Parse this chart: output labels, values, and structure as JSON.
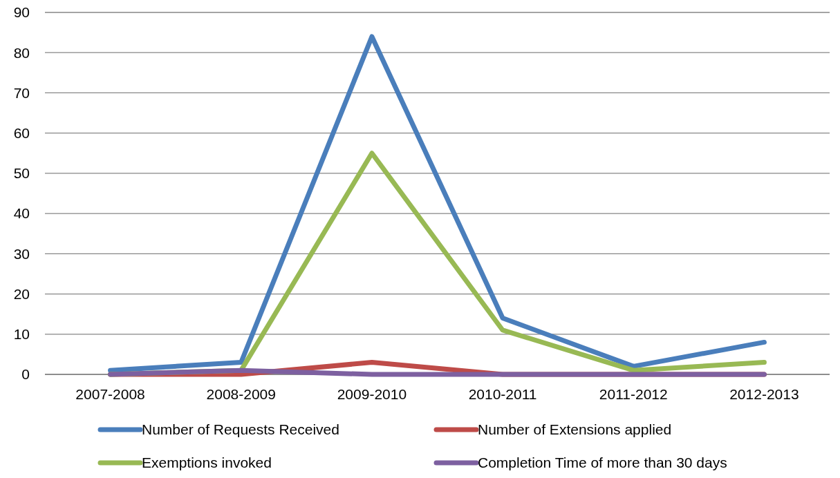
{
  "chart_data": {
    "type": "line",
    "categories": [
      "2007-2008",
      "2008-2009",
      "2009-2010",
      "2010-2011",
      "2011-2012",
      "2012-2013"
    ],
    "series": [
      {
        "name": "Number of Requests Received",
        "color": "#4a7ebb",
        "values": [
          1,
          3,
          84,
          14,
          2,
          8
        ]
      },
      {
        "name": "Number of Extensions applied",
        "color": "#be4b48",
        "values": [
          0,
          0,
          3,
          0,
          0,
          0
        ]
      },
      {
        "name": "Exemptions invoked",
        "color": "#98b954",
        "values": [
          0,
          1,
          55,
          11,
          1,
          3
        ]
      },
      {
        "name": "Completion Time of more than 30 days",
        "color": "#7d60a0",
        "values": [
          0,
          1,
          0,
          0,
          0,
          0
        ]
      }
    ],
    "ylim": [
      0,
      90
    ],
    "yticks": [
      0,
      10,
      20,
      30,
      40,
      50,
      60,
      70,
      80,
      90
    ],
    "grid": "y",
    "legend": "bottom",
    "marker": "none",
    "line_style": "solid"
  }
}
